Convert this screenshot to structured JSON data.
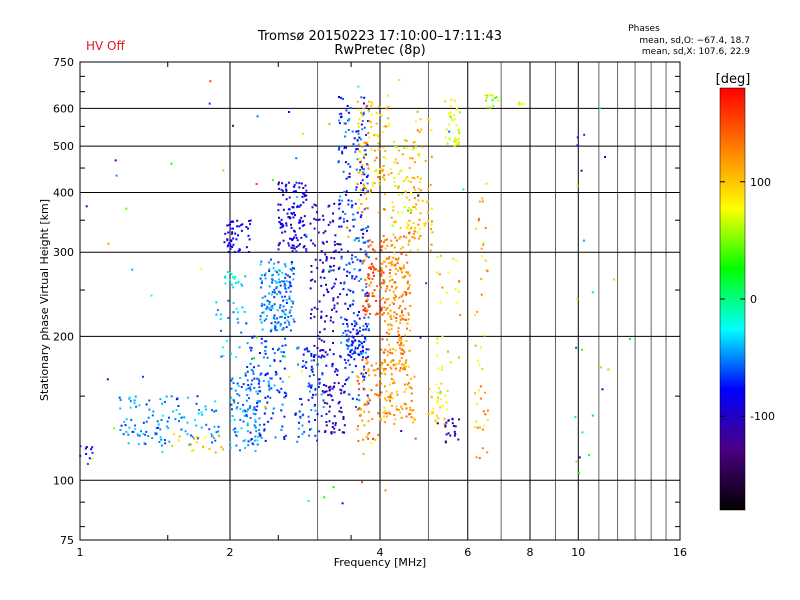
{
  "status": {
    "text": "HV Off",
    "color": "#e0141e"
  },
  "chart_data": {
    "type": "scatter",
    "title": "Tromsø 20150223 17:10:00–17:11:43",
    "subtitle": "RwPretec (8p)",
    "xlabel": "Frequency [MHz]",
    "ylabel": "Stationary phase Virtual Height [km]",
    "xscale": "log",
    "yscale": "log",
    "xlim": [
      1,
      16
    ],
    "ylim": [
      75,
      750
    ],
    "xticks": [
      1,
      2,
      4,
      6,
      8,
      10,
      16
    ],
    "yticks": [
      75,
      100,
      200,
      300,
      400,
      500,
      600,
      750
    ],
    "x_extra_minor_ticks": [
      1.5,
      3,
      5,
      7,
      9
    ],
    "grid": true,
    "phases": {
      "header": "Phases",
      "line_o": "mean, sd,O: −67.4, 18.7",
      "line_x": "mean, sd,X: 107.6, 22.9"
    },
    "colorbar": {
      "unit": "[deg]",
      "ticks": [
        100,
        0,
        -100
      ],
      "range": [
        -180,
        180
      ],
      "colors": [
        "#000000",
        "#4b0082",
        "#0000ff",
        "#00ffff",
        "#00ff00",
        "#ffff00",
        "#ff7f00",
        "#ff0000"
      ]
    },
    "clusters": [
      {
        "xmin": 1.0,
        "xmax": 1.07,
        "ymin": 108,
        "ymax": 118,
        "phase": [
          -100,
          -60
        ],
        "n": 10
      },
      {
        "xmin": 1.2,
        "xmax": 1.9,
        "ymin": 118,
        "ymax": 150,
        "phase": [
          -70,
          -30
        ],
        "n": 120
      },
      {
        "xmin": 1.45,
        "xmax": 1.95,
        "ymin": 114,
        "ymax": 125,
        "phase": [
          60,
          130
        ],
        "n": 20
      },
      {
        "xmin": 1.85,
        "xmax": 2.15,
        "ymin": 180,
        "ymax": 240,
        "phase": [
          -60,
          -20
        ],
        "n": 25
      },
      {
        "xmin": 1.95,
        "xmax": 2.2,
        "ymin": 250,
        "ymax": 275,
        "phase": [
          -40,
          0
        ],
        "n": 20
      },
      {
        "xmin": 1.95,
        "xmax": 2.2,
        "ymin": 300,
        "ymax": 350,
        "phase": [
          -110,
          -70
        ],
        "n": 50
      },
      {
        "xmin": 2.0,
        "xmax": 2.3,
        "ymin": 115,
        "ymax": 165,
        "phase": [
          -70,
          -30
        ],
        "n": 90
      },
      {
        "xmin": 2.3,
        "xmax": 2.7,
        "ymin": 205,
        "ymax": 290,
        "phase": [
          -70,
          -30
        ],
        "n": 160
      },
      {
        "xmin": 2.15,
        "xmax": 2.6,
        "ymin": 120,
        "ymax": 200,
        "phase": [
          -80,
          -40
        ],
        "n": 120
      },
      {
        "xmin": 2.5,
        "xmax": 2.85,
        "ymin": 300,
        "ymax": 420,
        "phase": [
          -110,
          -70
        ],
        "n": 120
      },
      {
        "xmin": 2.7,
        "xmax": 3.1,
        "ymin": 120,
        "ymax": 190,
        "phase": [
          -80,
          -40
        ],
        "n": 80
      },
      {
        "xmin": 2.9,
        "xmax": 3.3,
        "ymin": 150,
        "ymax": 380,
        "phase": [
          -120,
          -80
        ],
        "n": 140
      },
      {
        "xmin": 3.1,
        "xmax": 3.4,
        "ymin": 125,
        "ymax": 160,
        "phase": [
          -130,
          -90
        ],
        "n": 50
      },
      {
        "xmin": 3.3,
        "xmax": 3.8,
        "ymin": 180,
        "ymax": 640,
        "phase": [
          -100,
          -40
        ],
        "n": 280
      },
      {
        "xmin": 3.4,
        "xmax": 3.8,
        "ymin": 140,
        "ymax": 200,
        "phase": [
          -90,
          -50
        ],
        "n": 60
      },
      {
        "xmin": 3.6,
        "xmax": 4.0,
        "ymin": 120,
        "ymax": 180,
        "phase": [
          100,
          160
        ],
        "n": 60
      },
      {
        "xmin": 3.7,
        "xmax": 4.1,
        "ymin": 220,
        "ymax": 320,
        "phase": [
          120,
          170
        ],
        "n": 80
      },
      {
        "xmin": 3.6,
        "xmax": 4.2,
        "ymin": 360,
        "ymax": 640,
        "phase": [
          70,
          140
        ],
        "n": 110
      },
      {
        "xmin": 4.0,
        "xmax": 4.6,
        "ymin": 170,
        "ymax": 330,
        "phase": [
          100,
          150
        ],
        "n": 220
      },
      {
        "xmin": 4.0,
        "xmax": 4.7,
        "ymin": 130,
        "ymax": 175,
        "phase": [
          90,
          140
        ],
        "n": 90
      },
      {
        "xmin": 4.2,
        "xmax": 4.8,
        "ymin": 330,
        "ymax": 520,
        "phase": [
          60,
          120
        ],
        "n": 70
      },
      {
        "xmin": 4.6,
        "xmax": 5.1,
        "ymin": 300,
        "ymax": 600,
        "phase": [
          80,
          130
        ],
        "n": 60
      },
      {
        "xmin": 5.0,
        "xmax": 5.5,
        "ymin": 130,
        "ymax": 160,
        "phase": [
          70,
          110
        ],
        "n": 30
      },
      {
        "xmin": 5.4,
        "xmax": 5.8,
        "ymin": 120,
        "ymax": 135,
        "phase": [
          -120,
          -90
        ],
        "n": 20
      },
      {
        "xmin": 5.4,
        "xmax": 5.8,
        "ymin": 500,
        "ymax": 630,
        "phase": [
          50,
          90
        ],
        "n": 35
      },
      {
        "xmin": 5.2,
        "xmax": 5.8,
        "ymin": 160,
        "ymax": 300,
        "phase": [
          60,
          130
        ],
        "n": 25
      },
      {
        "xmin": 6.2,
        "xmax": 6.6,
        "ymin": 110,
        "ymax": 420,
        "phase": [
          60,
          140
        ],
        "n": 45
      },
      {
        "xmin": 6.5,
        "xmax": 7.0,
        "ymin": 600,
        "ymax": 640,
        "phase": [
          30,
          80
        ],
        "n": 15
      },
      {
        "xmin": 7.4,
        "xmax": 7.8,
        "ymin": 610,
        "ymax": 625,
        "phase": [
          60,
          80
        ],
        "n": 6
      },
      {
        "xmin": 9.8,
        "xmax": 10.3,
        "ymin": 100,
        "ymax": 540,
        "phase": [
          -120,
          120
        ],
        "n": 14
      },
      {
        "xmin": 10.5,
        "xmax": 13.0,
        "ymin": 110,
        "ymax": 660,
        "phase": [
          -120,
          120
        ],
        "n": 10
      },
      {
        "xmin": 1.0,
        "xmax": 6.0,
        "ymin": 85,
        "ymax": 700,
        "phase": [
          -140,
          160
        ],
        "n": 70
      }
    ]
  }
}
